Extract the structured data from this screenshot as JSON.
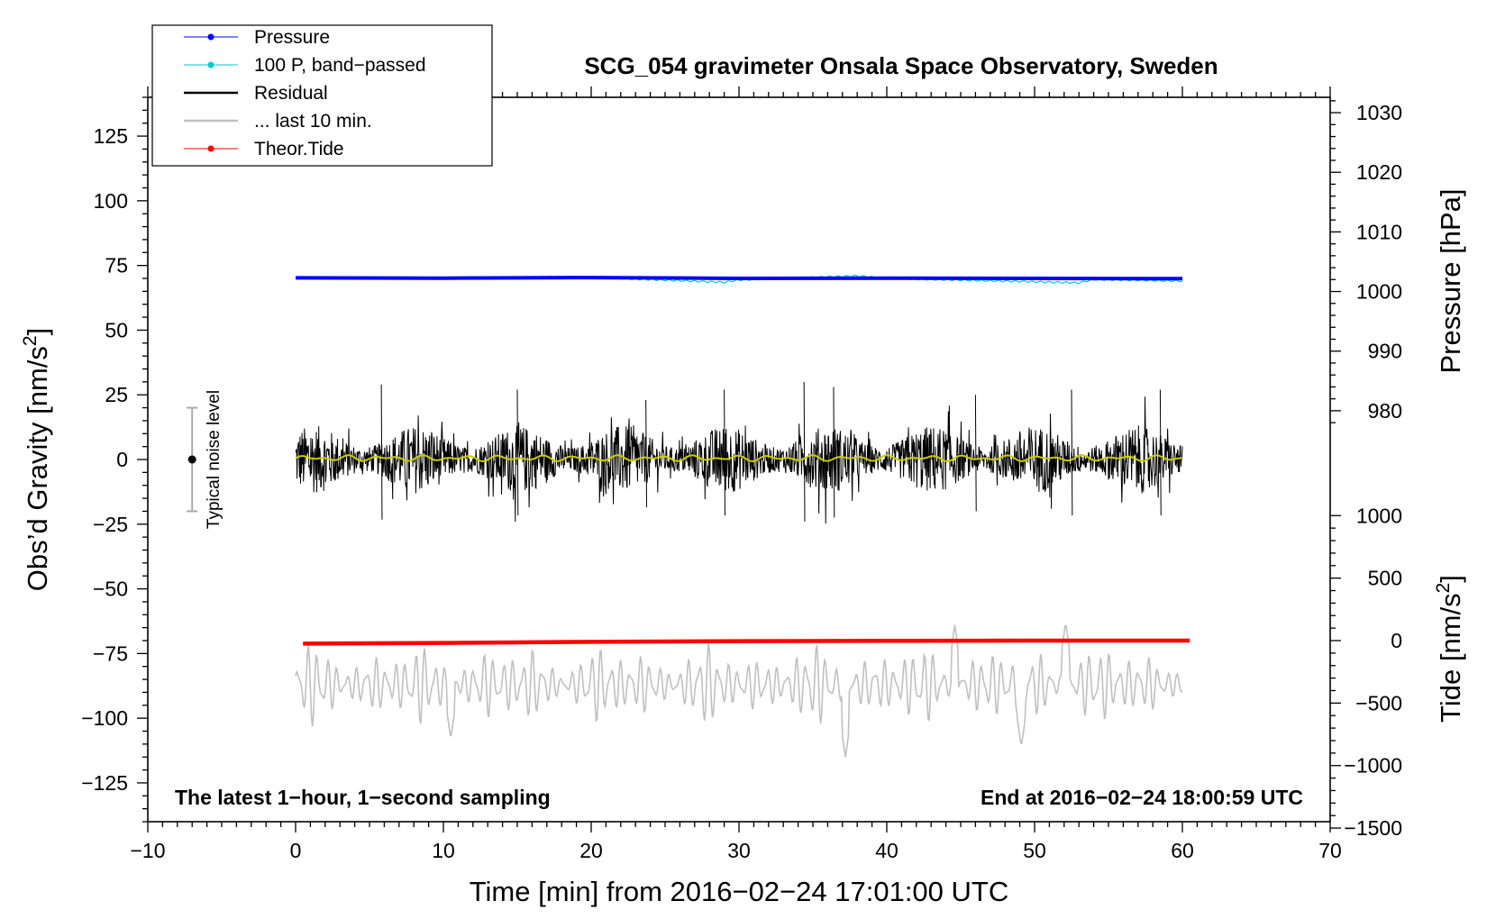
{
  "chart_data": {
    "type": "line",
    "title": "SCG_054 gravimeter Onsala Space Observatory, Sweden",
    "xlabel": "Time [min] from 2016−02−24 17:01:00 UTC",
    "ylabel_left": "Obs’d Gravity [nm/s",
    "ylabel_left_sup": "2",
    "ylabel_left_end": "]",
    "ylabel_right_top": "Pressure [hPa]",
    "ylabel_right_bottom": "Tide [nm/s",
    "ylabel_right_bottom_sup": "2",
    "ylabel_right_bottom_end": "]",
    "xlim": [
      -10,
      70
    ],
    "ylim_left": [
      -140,
      140
    ],
    "x_ticks": [
      -10,
      0,
      10,
      20,
      30,
      40,
      50,
      60,
      70
    ],
    "x_tick_labels": [
      "−10",
      "0",
      "10",
      "20",
      "30",
      "40",
      "50",
      "60",
      "70"
    ],
    "y_left_ticks": [
      125,
      100,
      75,
      50,
      25,
      0,
      -25,
      -50,
      -75,
      -100,
      -125
    ],
    "y_left_tick_labels": [
      "125",
      "100",
      "75",
      "50",
      "25",
      "0",
      "−25",
      "−50",
      "−75",
      "−100",
      "−125"
    ],
    "pressure_axis": {
      "ticks": [
        1030,
        1020,
        1010,
        1000,
        990,
        980
      ],
      "tick_labels": [
        "1030",
        "1020",
        "1010",
        "1000",
        "990",
        "980"
      ],
      "ref_value": 1002.2,
      "ref_left_y": 70,
      "hpa_per_left_unit": 0.434
    },
    "tide_axis": {
      "ticks": [
        1000,
        500,
        0,
        -500,
        -1000,
        -1500
      ],
      "tick_labels": [
        "1000",
        "500",
        "0",
        "−500",
        "−1000",
        "−1500"
      ],
      "ref_value": 0,
      "ref_left_y": -70,
      "tide_per_left_unit": 20.7
    },
    "series": [
      {
        "name": "Pressure",
        "color": "#0000ff",
        "style": "line-dot",
        "x": [
          0,
          10,
          20,
          30,
          40,
          50,
          60
        ],
        "y_left": [
          70.2,
          70.1,
          70.3,
          70.0,
          70.1,
          70.0,
          69.9
        ]
      },
      {
        "name": "100 P, band−passed",
        "color": "#00cccc",
        "style": "line-dot",
        "x": [
          0,
          10,
          19,
          20,
          29,
          30,
          38,
          40,
          53,
          54,
          60
        ],
        "y_left": [
          70.3,
          70.2,
          70.6,
          70.4,
          68.5,
          69.4,
          71.0,
          70.0,
          68.3,
          69.6,
          69.0
        ]
      },
      {
        "name": "Residual",
        "color": "#000000",
        "style": "line",
        "x_range": [
          0,
          60
        ],
        "amplitude": 12,
        "x_spikes": [
          5.8,
          15,
          23.7,
          29,
          34.4,
          36.4,
          46,
          52.5,
          58.5
        ],
        "y_spikes": [
          29,
          27,
          23,
          27,
          30,
          28,
          25,
          27,
          27
        ]
      },
      {
        "name": "... last 10 min.",
        "color": "#c0c0c0",
        "style": "line",
        "x_range": [
          0,
          60
        ],
        "center_left_y": -87,
        "amplitude": 12,
        "x_extremes": [
          10.5,
          37.2,
          44.6,
          49.1,
          52.1
        ],
        "y_extremes": [
          -108,
          -115,
          -64,
          -111,
          -63
        ]
      },
      {
        "name": "Theor.Tide",
        "color": "#ff0000",
        "style": "line-dot",
        "x": [
          0.5,
          10,
          20,
          30,
          40,
          50,
          60.5
        ],
        "y_left": [
          -71.2,
          -70.9,
          -70.5,
          -70.2,
          -70.1,
          -70.0,
          -70.0
        ]
      },
      {
        "name": "filtered residual",
        "color": "#cccc00",
        "style": "line",
        "x_range": [
          0,
          60
        ],
        "y_left_center": 0.5,
        "amplitude": 1.2
      }
    ],
    "noise_level": {
      "label": "Typical noise level",
      "x": -7,
      "center": 0,
      "half_range": 20
    },
    "annotations": {
      "bottom_left": "The latest 1−hour, 1−second sampling",
      "bottom_right": "End at 2016−02−24 18:00:59 UTC"
    },
    "legend_position": "top-left"
  }
}
